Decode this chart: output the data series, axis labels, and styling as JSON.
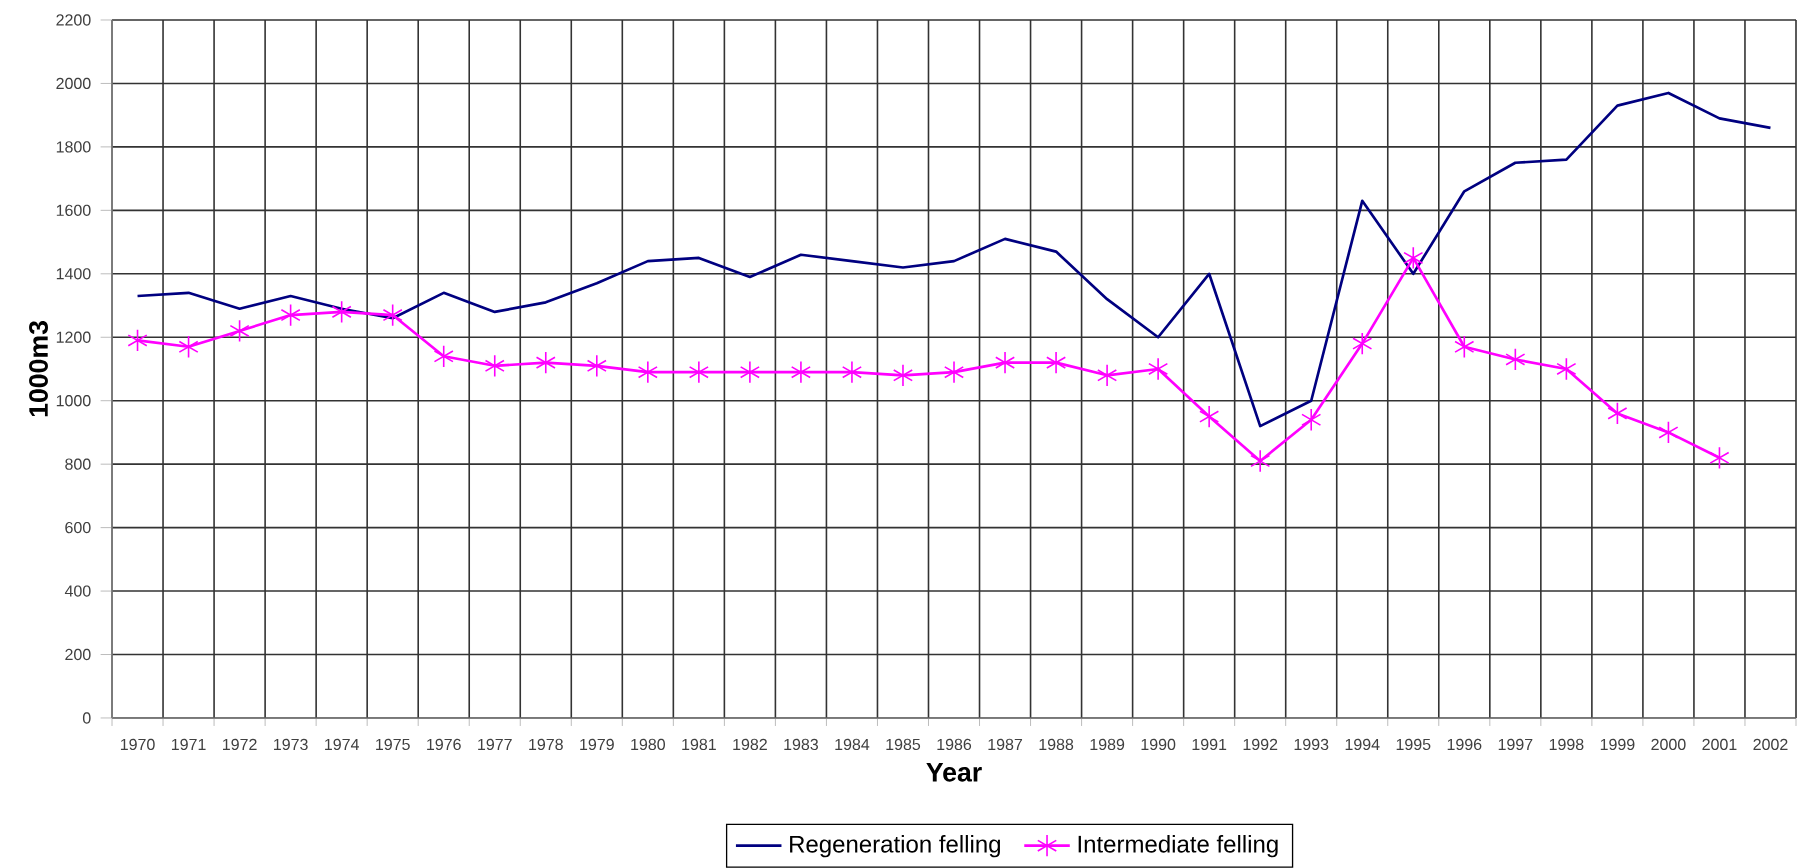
{
  "chart_data": {
    "type": "line",
    "xlabel": "Year",
    "ylabel": "1000m3",
    "categories": [
      "1970",
      "1971",
      "1972",
      "1973",
      "1974",
      "1975",
      "1976",
      "1977",
      "1978",
      "1979",
      "1980",
      "1981",
      "1982",
      "1983",
      "1984",
      "1985",
      "1986",
      "1987",
      "1988",
      "1989",
      "1990",
      "1991",
      "1992",
      "1993",
      "1994",
      "1995",
      "1996",
      "1997",
      "1998",
      "1999",
      "2000",
      "2001",
      "2002"
    ],
    "series": [
      {
        "name": "Regeneration felling",
        "color": "#000080",
        "marker": "none",
        "values": [
          1330,
          1340,
          1290,
          1330,
          1290,
          1260,
          1340,
          1280,
          1310,
          1370,
          1440,
          1450,
          1390,
          1460,
          1440,
          1420,
          1440,
          1510,
          1470,
          1320,
          1200,
          1400,
          920,
          1000,
          1630,
          1400,
          1660,
          1750,
          1760,
          1930,
          1970,
          1890,
          1860
        ]
      },
      {
        "name": "Intermediate felling",
        "color": "#ff00ff",
        "marker": "cross",
        "values": [
          1190,
          1170,
          1220,
          1270,
          1280,
          1270,
          1140,
          1110,
          1120,
          1110,
          1090,
          1090,
          1090,
          1090,
          1090,
          1080,
          1090,
          1120,
          1120,
          1080,
          1100,
          950,
          810,
          940,
          1180,
          1450,
          1170,
          1130,
          1100,
          960,
          900,
          820,
          null
        ]
      }
    ],
    "ylim": [
      0,
      2200
    ],
    "yticks": [
      0,
      200,
      400,
      600,
      800,
      1000,
      1200,
      1400,
      1600,
      1800,
      2000,
      2200
    ],
    "grid": true,
    "legend": "bottom",
    "line_style": "solid"
  }
}
